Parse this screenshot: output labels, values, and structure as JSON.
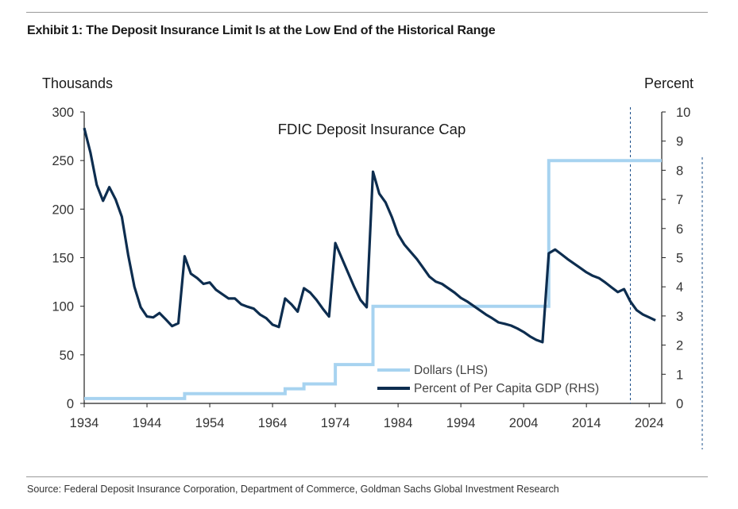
{
  "exhibit": {
    "title": "Exhibit 1: The Deposit Insurance Limit Is at the Low End of the Historical Range",
    "source": "Source: Federal Deposit Insurance Corporation, Department of Commerce, Goldman Sachs Global Investment Research"
  },
  "colors": {
    "dollars_line": "#a7d3f0",
    "percent_line": "#0d2d4f",
    "axis": "#222222",
    "vline": "#1b4f8a"
  },
  "chart_data": {
    "type": "line",
    "title": "FDIC Deposit Insurance Cap",
    "ylabel_left": "Thousands",
    "ylabel_right": "Percent",
    "xlim": [
      1934,
      2026
    ],
    "ylim_left": [
      0,
      300
    ],
    "ylim_right": [
      0,
      10
    ],
    "x_ticks": [
      1934,
      1944,
      1954,
      1964,
      1974,
      1984,
      1994,
      2004,
      2014,
      2024
    ],
    "y_left_ticks": [
      0,
      50,
      100,
      150,
      200,
      250,
      300
    ],
    "y_right_ticks": [
      0,
      1,
      2,
      3,
      4,
      5,
      6,
      7,
      8,
      9,
      10
    ],
    "grid": false,
    "legend_position": "bottom-right",
    "vertical_marker_year": 2021,
    "series": [
      {
        "name": "Dollars (LHS)",
        "axis": "left",
        "step": true,
        "points": [
          [
            1934,
            5
          ],
          [
            1950,
            5
          ],
          [
            1950,
            10
          ],
          [
            1966,
            10
          ],
          [
            1966,
            15
          ],
          [
            1969,
            15
          ],
          [
            1969,
            20
          ],
          [
            1974,
            20
          ],
          [
            1974,
            40
          ],
          [
            1980,
            40
          ],
          [
            1980,
            100
          ],
          [
            2008,
            100
          ],
          [
            2008,
            250
          ],
          [
            2026,
            250
          ]
        ]
      },
      {
        "name": "Percent of Per Capita GDP (RHS)",
        "axis": "right",
        "step": false,
        "points": [
          [
            1934,
            9.45
          ],
          [
            1935,
            8.6
          ],
          [
            1936,
            7.5
          ],
          [
            1937,
            6.95
          ],
          [
            1938,
            7.42
          ],
          [
            1939,
            7.0
          ],
          [
            1940,
            6.4
          ],
          [
            1941,
            5.1
          ],
          [
            1942,
            4.0
          ],
          [
            1943,
            3.3
          ],
          [
            1944,
            2.98
          ],
          [
            1945,
            2.95
          ],
          [
            1946,
            3.1
          ],
          [
            1947,
            2.88
          ],
          [
            1948,
            2.65
          ],
          [
            1949,
            2.75
          ],
          [
            1950,
            5.05
          ],
          [
            1951,
            4.45
          ],
          [
            1952,
            4.3
          ],
          [
            1953,
            4.1
          ],
          [
            1954,
            4.15
          ],
          [
            1955,
            3.9
          ],
          [
            1956,
            3.75
          ],
          [
            1957,
            3.6
          ],
          [
            1958,
            3.6
          ],
          [
            1959,
            3.4
          ],
          [
            1960,
            3.32
          ],
          [
            1961,
            3.25
          ],
          [
            1962,
            3.05
          ],
          [
            1963,
            2.92
          ],
          [
            1964,
            2.7
          ],
          [
            1965,
            2.62
          ],
          [
            1966,
            3.6
          ],
          [
            1967,
            3.4
          ],
          [
            1968,
            3.15
          ],
          [
            1969,
            3.95
          ],
          [
            1970,
            3.8
          ],
          [
            1971,
            3.55
          ],
          [
            1972,
            3.25
          ],
          [
            1973,
            2.98
          ],
          [
            1974,
            5.5
          ],
          [
            1975,
            5.0
          ],
          [
            1976,
            4.5
          ],
          [
            1977,
            4.0
          ],
          [
            1978,
            3.55
          ],
          [
            1979,
            3.3
          ],
          [
            1980,
            7.95
          ],
          [
            1981,
            7.2
          ],
          [
            1982,
            6.9
          ],
          [
            1983,
            6.4
          ],
          [
            1984,
            5.8
          ],
          [
            1985,
            5.45
          ],
          [
            1986,
            5.2
          ],
          [
            1987,
            4.95
          ],
          [
            1988,
            4.65
          ],
          [
            1989,
            4.35
          ],
          [
            1990,
            4.18
          ],
          [
            1991,
            4.1
          ],
          [
            1992,
            3.95
          ],
          [
            1993,
            3.8
          ],
          [
            1994,
            3.62
          ],
          [
            1995,
            3.5
          ],
          [
            1996,
            3.35
          ],
          [
            1997,
            3.2
          ],
          [
            1998,
            3.05
          ],
          [
            1999,
            2.92
          ],
          [
            2000,
            2.78
          ],
          [
            2001,
            2.73
          ],
          [
            2002,
            2.67
          ],
          [
            2003,
            2.57
          ],
          [
            2004,
            2.45
          ],
          [
            2005,
            2.3
          ],
          [
            2006,
            2.18
          ],
          [
            2007,
            2.1
          ],
          [
            2008,
            5.15
          ],
          [
            2009,
            5.28
          ],
          [
            2010,
            5.12
          ],
          [
            2011,
            4.95
          ],
          [
            2012,
            4.8
          ],
          [
            2013,
            4.65
          ],
          [
            2014,
            4.5
          ],
          [
            2015,
            4.38
          ],
          [
            2016,
            4.3
          ],
          [
            2017,
            4.15
          ],
          [
            2018,
            3.98
          ],
          [
            2019,
            3.82
          ],
          [
            2020,
            3.92
          ],
          [
            2021,
            3.5
          ],
          [
            2022,
            3.2
          ],
          [
            2023,
            3.05
          ],
          [
            2024,
            2.95
          ],
          [
            2025,
            2.85
          ]
        ]
      }
    ]
  }
}
